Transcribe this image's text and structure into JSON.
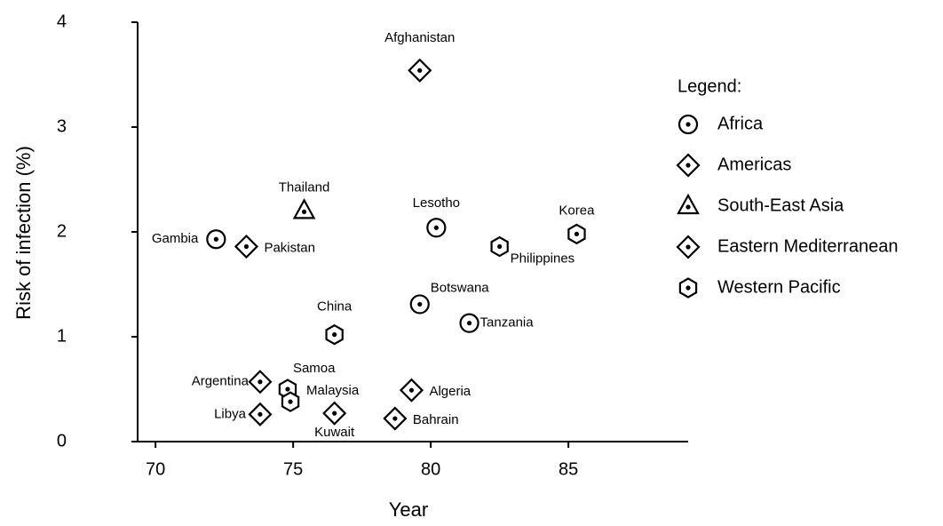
{
  "chart_data": {
    "type": "scatter",
    "x_label": "Year",
    "y_label": "Risk of infection (%)",
    "legend_title": "Legend:",
    "xlim": [
      69.35,
      89.35
    ],
    "ylim": [
      0,
      4
    ],
    "xticks": [
      70,
      75,
      80,
      85
    ],
    "yticks": [
      0,
      1,
      2,
      3,
      4
    ],
    "color": "#000000",
    "series": [
      {
        "name": "Africa",
        "marker": "circle",
        "labels": [
          "Gambia",
          "Lesotho",
          "Botswana",
          "Tanzania"
        ],
        "x": [
          72.2,
          80.2,
          79.6,
          81.4
        ],
        "values": [
          1.93,
          2.04,
          1.31,
          1.13
        ]
      },
      {
        "name": "Americas",
        "marker": "diamond",
        "labels": [
          "Argentina"
        ],
        "x": [
          73.8
        ],
        "values": [
          0.57
        ]
      },
      {
        "name": "South-East Asia",
        "marker": "triangle",
        "labels": [
          "Thailand"
        ],
        "x": [
          75.4
        ],
        "values": [
          2.2
        ]
      },
      {
        "name": "Eastern Mediterranean",
        "marker": "diamond",
        "labels": [
          "Afghanistan",
          "Pakistan",
          "Libya",
          "Kuwait",
          "Algeria",
          "Bahrain"
        ],
        "x": [
          79.6,
          73.3,
          73.8,
          76.5,
          79.3,
          78.7
        ],
        "values": [
          3.54,
          1.86,
          0.26,
          0.27,
          0.49,
          0.22
        ]
      },
      {
        "name": "Western Pacific",
        "marker": "hexagon",
        "labels": [
          "Philippines",
          "Korea",
          "China",
          "Samoa",
          "Malaysia"
        ],
        "x": [
          82.5,
          85.3,
          76.5,
          74.8,
          74.9
        ],
        "values": [
          1.86,
          1.98,
          1.02,
          0.5,
          0.38
        ]
      }
    ]
  }
}
